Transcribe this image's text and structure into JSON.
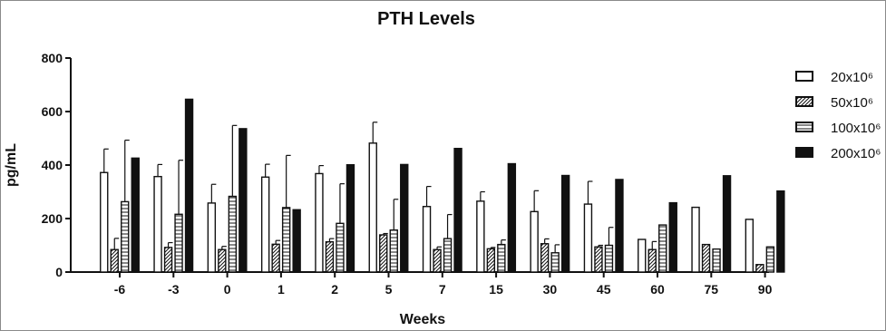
{
  "chart_data": {
    "type": "bar",
    "title": "PTH Levels",
    "xlabel": "Weeks",
    "ylabel": "pg/mL",
    "ylim": [
      0,
      800
    ],
    "yticks": [
      "0",
      "200",
      "400",
      "600",
      "800"
    ],
    "categories": [
      "-6",
      "-3",
      "0",
      "1",
      "2",
      "5",
      "7",
      "15",
      "30",
      "45",
      "60",
      "75",
      "90"
    ],
    "legend_position": "right",
    "series": [
      {
        "name": "20x10⁶",
        "pattern": "open",
        "values": [
          372,
          357,
          258,
          355,
          368,
          482,
          245,
          265,
          226,
          254,
          122,
          242,
          197
        ],
        "errors": [
          88,
          45,
          70,
          48,
          30,
          78,
          75,
          35,
          78,
          85,
          0,
          0,
          0
        ]
      },
      {
        "name": "50x10⁶",
        "pattern": "diagonal",
        "values": [
          84,
          92,
          84,
          104,
          113,
          139,
          84,
          87,
          106,
          94,
          84,
          103,
          28
        ],
        "errors": [
          42,
          18,
          12,
          14,
          12,
          5,
          10,
          5,
          18,
          6,
          30,
          0,
          0
        ]
      },
      {
        "name": "100x10⁶",
        "pattern": "horizontal",
        "values": [
          263,
          216,
          283,
          241,
          182,
          157,
          125,
          103,
          72,
          100,
          176,
          86,
          94
        ],
        "errors": [
          230,
          202,
          265,
          195,
          148,
          115,
          90,
          17,
          30,
          67,
          0,
          0,
          0
        ]
      },
      {
        "name": "200x10⁶",
        "pattern": "solid",
        "values": [
          426,
          646,
          536,
          233,
          401,
          402,
          462,
          405,
          361,
          346,
          259,
          360,
          303
        ],
        "errors": [
          0,
          0,
          0,
          0,
          0,
          0,
          0,
          0,
          0,
          0,
          0,
          0,
          0
        ]
      }
    ],
    "colors": {
      "bar_stroke": "#111111",
      "solid_fill": "#111111",
      "open_fill": "#ffffff"
    }
  }
}
